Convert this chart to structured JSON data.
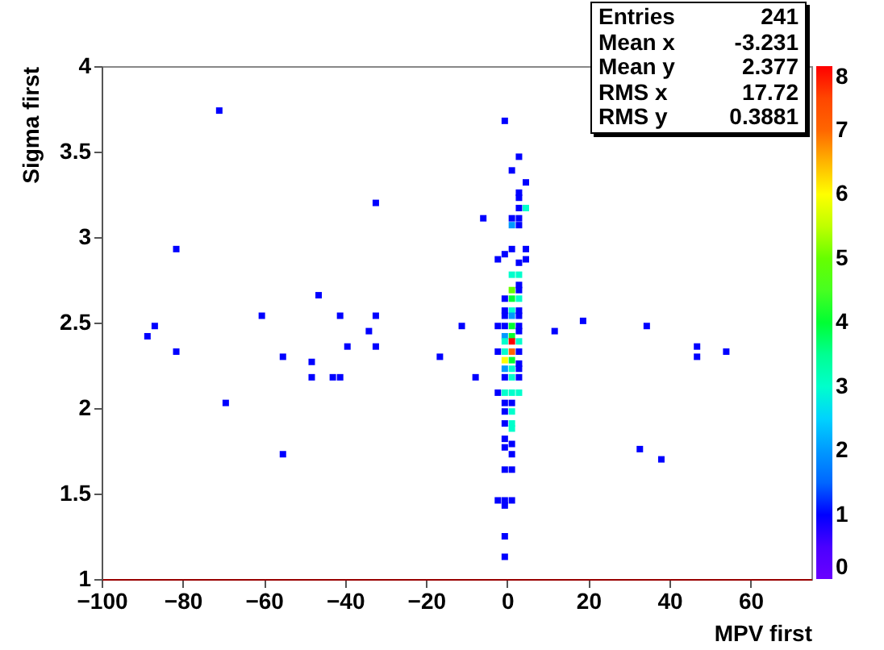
{
  "chart_data": {
    "type": "scatter",
    "xlabel": "MPV first",
    "ylabel": "Sigma first",
    "marker": "square",
    "grid": false,
    "xlim": [
      -100,
      75
    ],
    "ylim": [
      1,
      4
    ],
    "xticks": [
      -100,
      -80,
      -60,
      -40,
      -20,
      0,
      20,
      40,
      60
    ],
    "yticks": [
      1,
      1.5,
      2,
      2.5,
      3,
      3.5,
      4
    ],
    "clim": [
      0,
      8
    ],
    "cticks": [
      0,
      1,
      2,
      3,
      4,
      5,
      6,
      7,
      8
    ],
    "annotations": [
      "Entries 241",
      "Mean x -3.231",
      "Mean y 2.377",
      "RMS x 17.72",
      "RMS y 0.3881"
    ],
    "x": [
      -71.0,
      -32.4,
      -81.6,
      -46.5,
      -60.5,
      -41.2,
      -32.4,
      -86.9,
      -11.2,
      -34.1,
      -88.7,
      -39.4,
      -32.4,
      -81.6,
      -55.3,
      -16.6,
      -48.2,
      -48.2,
      -43.0,
      -41.2,
      -69.4,
      -55.3,
      -5.9,
      11.7,
      18.7,
      34.4,
      46.8,
      46.8,
      54.0,
      -7.8,
      32.7,
      38.0,
      -0.6,
      2.9,
      1.15,
      4.6,
      2.9,
      2.9,
      2.9,
      4.6,
      1.15,
      2.9,
      1.15,
      2.9,
      1.15,
      4.6,
      -0.6,
      -2.3,
      4.6,
      2.9,
      1.15,
      2.9,
      2.9,
      1.15,
      2.9,
      -0.6,
      1.15,
      2.9,
      -0.6,
      1.15,
      2.9,
      -0.6,
      1.15,
      2.9,
      -2.3,
      -0.6,
      1.15,
      2.9,
      -0.6,
      1.15,
      2.9,
      -0.6,
      1.15,
      2.9,
      -2.3,
      -0.6,
      1.15,
      2.9,
      -0.6,
      1.15,
      2.9,
      -0.6,
      1.15,
      2.9,
      -0.6,
      1.15,
      2.9,
      -2.3,
      -0.6,
      1.15,
      2.9,
      -0.6,
      1.15,
      -0.6,
      1.15,
      -0.6,
      1.15,
      1.15,
      -0.6,
      1.15,
      -0.6,
      1.15,
      -0.6,
      1.15,
      -2.3,
      -0.6,
      1.15,
      -0.6,
      -0.6,
      -0.6
    ],
    "values": [
      3.74,
      3.2,
      2.93,
      2.66,
      2.54,
      2.54,
      2.54,
      2.48,
      2.48,
      2.45,
      2.42,
      2.36,
      2.36,
      2.33,
      2.3,
      2.3,
      2.27,
      2.18,
      2.18,
      2.18,
      2.03,
      1.73,
      3.11,
      2.45,
      2.51,
      2.48,
      2.36,
      2.3,
      2.33,
      2.18,
      1.76,
      1.7,
      3.68,
      3.47,
      3.39,
      3.32,
      3.26,
      3.23,
      3.17,
      3.17,
      3.11,
      3.11,
      3.07,
      3.07,
      2.93,
      2.93,
      2.9,
      2.87,
      2.87,
      2.85,
      2.78,
      2.78,
      2.72,
      2.69,
      2.69,
      2.64,
      2.64,
      2.64,
      2.57,
      2.57,
      2.57,
      2.54,
      2.54,
      2.54,
      2.48,
      2.48,
      2.48,
      2.48,
      2.42,
      2.42,
      2.45,
      2.39,
      2.39,
      2.39,
      2.33,
      2.33,
      2.33,
      2.33,
      2.28,
      2.28,
      2.26,
      2.23,
      2.23,
      2.23,
      2.18,
      2.18,
      2.18,
      2.09,
      2.09,
      2.09,
      2.09,
      2.03,
      2.03,
      1.98,
      1.98,
      1.91,
      1.91,
      1.88,
      1.82,
      1.79,
      1.77,
      1.73,
      1.64,
      1.64,
      1.46,
      1.46,
      1.46,
      1.43,
      1.25,
      1.13
    ],
    "cvalues": [
      1,
      1,
      1,
      1,
      1,
      1,
      1,
      1,
      1,
      1,
      1,
      1,
      1,
      1,
      1,
      1,
      1,
      1,
      1,
      1,
      1,
      1,
      1,
      1,
      1,
      1,
      1,
      1,
      1,
      1,
      1,
      1,
      1,
      1,
      1,
      1,
      1,
      1,
      1,
      3,
      1,
      1,
      2,
      1,
      1,
      1,
      1,
      1,
      1,
      1,
      3,
      3,
      1,
      5,
      1,
      1,
      4,
      3,
      1,
      3,
      1,
      1,
      2,
      1,
      1,
      1,
      4,
      1,
      2,
      4,
      1,
      3,
      8,
      3,
      1,
      3,
      7,
      1,
      6,
      4,
      1,
      2,
      3,
      1,
      1,
      3,
      1,
      1,
      3,
      3,
      3,
      1,
      1,
      1,
      3,
      1,
      3,
      3,
      1,
      1,
      1,
      1,
      1,
      1,
      1,
      1,
      1,
      1,
      1,
      1
    ]
  }
}
